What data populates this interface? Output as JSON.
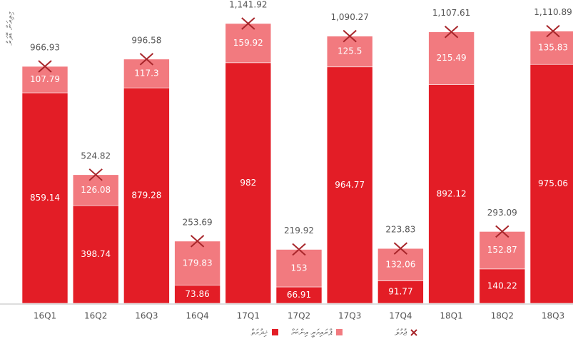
{
  "chart_data": {
    "type": "stacked_bar",
    "y_label": "މިލިއަން ޑޮލަރު",
    "categories": [
      "16Q1",
      "16Q2",
      "16Q3",
      "16Q4",
      "17Q1",
      "17Q2",
      "17Q3",
      "17Q4",
      "18Q1",
      "18Q2",
      "18Q3"
    ],
    "series": [
      {
        "name": "ޚިދުމަތް",
        "color": "#e31d26",
        "values": [
          859.14,
          398.74,
          879.28,
          73.86,
          982.0,
          66.91,
          964.77,
          91.77,
          892.12,
          140.22,
          975.06
        ]
      },
      {
        "name": "ޕްރައިމަރީ އިންކަމް",
        "color": "#f27a7f",
        "values": [
          107.79,
          126.08,
          117.3,
          179.83,
          159.92,
          153.0,
          125.5,
          132.06,
          215.49,
          152.87,
          135.83
        ]
      }
    ],
    "total": {
      "name": "ޖުމުލަ",
      "color": "#a8262b",
      "values": [
        966.93,
        524.82,
        996.58,
        253.69,
        1141.92,
        219.92,
        1090.27,
        223.83,
        1107.61,
        293.09,
        1110.89
      ],
      "value_labels": [
        "966.93",
        "524.82",
        "996.58",
        "253.69",
        "1,141.92",
        "219.92",
        "1,090.27",
        "223.83",
        "1,107.61",
        "293.09",
        "1,110.89"
      ]
    },
    "ylim": [
      0,
      1200
    ],
    "grid": false
  }
}
